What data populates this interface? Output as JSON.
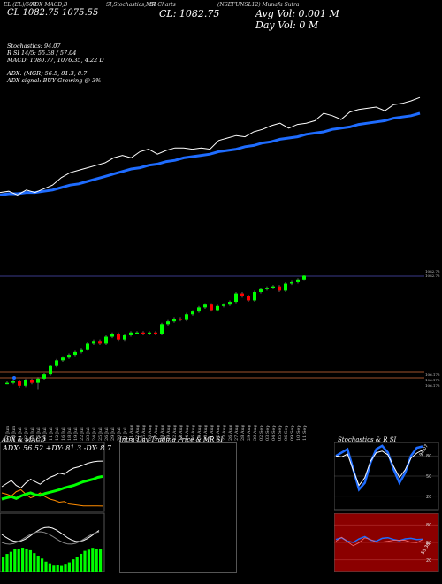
{
  "header": {
    "line1_a": "EL (EL)/500",
    "line1_b": "ADX MACD,B",
    "line1_c": "SI,Stochastics,MR",
    "line1_d": "SI Charts",
    "line1_e": "(NSEFUNSL12) Munafa Sutra",
    "close_label": "CL: 1082.75",
    "day_label": "CL 1082.75 1075.55",
    "avg_vol": "Avg Vol: 0.001 M",
    "day_vol": "Day Vol: 0   M"
  },
  "indicators": {
    "stochastics": "Stochastics: 94.07",
    "rsi": "R                    SI 14/5: 55.38 / 57.04",
    "macd": "MACD: 1080.77,  1076.35,  4.22  D",
    "adx": "ADX:                           (MGR) 56.5,  81.3,  8.7",
    "adx_signal": "ADX  signal:                       BUY Growing @ 3%"
  },
  "price_levels": {
    "top1": "1082.75",
    "top2": "1082.75",
    "bot1": "106.175",
    "bot2": "106.175",
    "bot3": "106.175"
  },
  "x_dates": [
    "27 Jun",
    "28 Jun",
    "01 Jul",
    "02 Jul",
    "04 Jul",
    "05 Jul",
    "09 Jul",
    "11 Jul",
    "12 Jul",
    "16 Jul",
    "18 Jul",
    "19 Jul",
    "22 Jul",
    "23 Jul",
    "24 Jul",
    "25 Jul",
    "26 Jul",
    "29 Jul",
    "30 Jul",
    "31 Jul",
    "01 Aug",
    "02 Aug",
    "05 Aug",
    "06 Aug",
    "07 Aug",
    "08 Aug",
    "09 Aug",
    "12 Aug",
    "13 Aug",
    "14 Aug",
    "16 Aug",
    "19 Aug",
    "20 Aug",
    "21 Aug",
    "22 Aug",
    "23 Aug",
    "26 Aug",
    "27 Aug",
    "28 Aug",
    "29 Aug",
    "30 Aug",
    "02 Sep",
    "03 Sep",
    "04 Sep",
    "05 Sep",
    "06 Sep",
    "09 Sep",
    "10 Sep",
    "11 Sep"
  ],
  "panels": {
    "adx_title": "ADX  & MACD",
    "adx_values": "ADX: 56.52  +DY: 81.3 -DY: 8.7",
    "intraday_title": "Intra  Day Trading Price  & MR                SI",
    "stoch_title": "Stochastics & R               SI",
    "stoch_ticks": [
      "80",
      "50",
      "20"
    ],
    "stoch_value": "94.07",
    "rsi_ticks": [
      "80",
      "50",
      "20"
    ],
    "rsi_value": "55.38"
  },
  "chart_data": {
    "type": "line",
    "title": "",
    "close": [
      1006,
      1007,
      1004,
      1008,
      1006,
      1009,
      1012,
      1018,
      1022,
      1024,
      1026,
      1028,
      1030,
      1034,
      1036,
      1034,
      1039,
      1041,
      1037,
      1040,
      1042,
      1042,
      1041,
      1042,
      1041,
      1048,
      1050,
      1052,
      1051,
      1055,
      1057,
      1060,
      1062,
      1058,
      1061,
      1062,
      1064,
      1070,
      1068,
      1065,
      1071,
      1073,
      1074,
      1075,
      1072,
      1077,
      1078,
      1080,
      1082.75
    ],
    "moving_average": [
      1004,
      1005,
      1005,
      1006,
      1006,
      1007,
      1008,
      1010,
      1012,
      1013,
      1015,
      1017,
      1019,
      1021,
      1023,
      1025,
      1026,
      1028,
      1029,
      1031,
      1032,
      1034,
      1035,
      1036,
      1037,
      1039,
      1040,
      1041,
      1043,
      1044,
      1046,
      1047,
      1049,
      1050,
      1051,
      1053,
      1054,
      1055,
      1057,
      1058,
      1059,
      1061,
      1062,
      1063,
      1064,
      1066,
      1067,
      1068,
      1070
    ],
    "candles": [
      {
        "o": 1006,
        "c": 1006,
        "h": 1007,
        "l": 1005
      },
      {
        "o": 1006,
        "c": 1007,
        "h": 1008,
        "l": 1005
      },
      {
        "o": 1007,
        "c": 1004,
        "h": 1008,
        "l": 1002
      },
      {
        "o": 1004,
        "c": 1008,
        "h": 1009,
        "l": 1003
      },
      {
        "o": 1008,
        "c": 1006,
        "h": 1009,
        "l": 1005
      },
      {
        "o": 1006,
        "c": 1009,
        "h": 1010,
        "l": 1001
      },
      {
        "o": 1009,
        "c": 1012,
        "h": 1013,
        "l": 1008
      },
      {
        "o": 1012,
        "c": 1018,
        "h": 1019,
        "l": 1011
      },
      {
        "o": 1018,
        "c": 1022,
        "h": 1023,
        "l": 1017
      },
      {
        "o": 1022,
        "c": 1024,
        "h": 1025,
        "l": 1021
      },
      {
        "o": 1024,
        "c": 1026,
        "h": 1027,
        "l": 1023
      },
      {
        "o": 1026,
        "c": 1028,
        "h": 1029,
        "l": 1025
      },
      {
        "o": 1028,
        "c": 1030,
        "h": 1031,
        "l": 1027
      },
      {
        "o": 1030,
        "c": 1034,
        "h": 1035,
        "l": 1029
      },
      {
        "o": 1034,
        "c": 1036,
        "h": 1037,
        "l": 1033
      },
      {
        "o": 1036,
        "c": 1034,
        "h": 1037,
        "l": 1033
      },
      {
        "o": 1034,
        "c": 1039,
        "h": 1040,
        "l": 1033
      },
      {
        "o": 1039,
        "c": 1041,
        "h": 1042,
        "l": 1038
      },
      {
        "o": 1041,
        "c": 1037,
        "h": 1042,
        "l": 1036
      },
      {
        "o": 1037,
        "c": 1040,
        "h": 1041,
        "l": 1036
      },
      {
        "o": 1040,
        "c": 1042,
        "h": 1043,
        "l": 1039
      },
      {
        "o": 1042,
        "c": 1042,
        "h": 1043,
        "l": 1041
      },
      {
        "o": 1042,
        "c": 1041,
        "h": 1043,
        "l": 1040
      },
      {
        "o": 1041,
        "c": 1042,
        "h": 1043,
        "l": 1040
      },
      {
        "o": 1042,
        "c": 1041,
        "h": 1043,
        "l": 1040
      },
      {
        "o": 1041,
        "c": 1048,
        "h": 1049,
        "l": 1040
      },
      {
        "o": 1048,
        "c": 1050,
        "h": 1051,
        "l": 1047
      },
      {
        "o": 1050,
        "c": 1052,
        "h": 1053,
        "l": 1049
      },
      {
        "o": 1052,
        "c": 1051,
        "h": 1053,
        "l": 1050
      },
      {
        "o": 1051,
        "c": 1055,
        "h": 1056,
        "l": 1050
      },
      {
        "o": 1055,
        "c": 1057,
        "h": 1058,
        "l": 1054
      },
      {
        "o": 1057,
        "c": 1060,
        "h": 1061,
        "l": 1056
      },
      {
        "o": 1060,
        "c": 1062,
        "h": 1063,
        "l": 1059
      },
      {
        "o": 1062,
        "c": 1058,
        "h": 1063,
        "l": 1057
      },
      {
        "o": 1058,
        "c": 1061,
        "h": 1062,
        "l": 1057
      },
      {
        "o": 1061,
        "c": 1062,
        "h": 1063,
        "l": 1060
      },
      {
        "o": 1062,
        "c": 1064,
        "h": 1065,
        "l": 1061
      },
      {
        "o": 1064,
        "c": 1070,
        "h": 1071,
        "l": 1063
      },
      {
        "o": 1070,
        "c": 1068,
        "h": 1071,
        "l": 1067
      },
      {
        "o": 1068,
        "c": 1065,
        "h": 1069,
        "l": 1064
      },
      {
        "o": 1065,
        "c": 1071,
        "h": 1072,
        "l": 1064
      },
      {
        "o": 1071,
        "c": 1073,
        "h": 1074,
        "l": 1070
      },
      {
        "o": 1073,
        "c": 1074,
        "h": 1075,
        "l": 1072
      },
      {
        "o": 1074,
        "c": 1075,
        "h": 1076,
        "l": 1073
      },
      {
        "o": 1075,
        "c": 1072,
        "h": 1076,
        "l": 1071
      },
      {
        "o": 1072,
        "c": 1077,
        "h": 1078,
        "l": 1071
      },
      {
        "o": 1077,
        "c": 1078,
        "h": 1079,
        "l": 1076
      },
      {
        "o": 1078,
        "c": 1080,
        "h": 1081,
        "l": 1077
      },
      {
        "o": 1080,
        "c": 1082.75,
        "h": 1083,
        "l": 1079
      }
    ],
    "adx_line": [
      20,
      22,
      24,
      21,
      25,
      28,
      30,
      27,
      26,
      29,
      31,
      33,
      35,
      38,
      40,
      42,
      45,
      48,
      50,
      52,
      55,
      56.52
    ],
    "plus_di": [
      40,
      45,
      50,
      42,
      38,
      46,
      52,
      48,
      44,
      50,
      55,
      58,
      62,
      60,
      66,
      70,
      72,
      75,
      78,
      80,
      81,
      81.3
    ],
    "minus_di": [
      30,
      28,
      25,
      32,
      35,
      28,
      22,
      25,
      30,
      24,
      20,
      18,
      15,
      16,
      12,
      11,
      10,
      9,
      9,
      9,
      8.8,
      8.7
    ],
    "stoch_series": [
      80,
      85,
      90,
      60,
      30,
      40,
      70,
      90,
      95,
      85,
      60,
      40,
      55,
      80,
      92,
      94.07
    ],
    "rsi_series": [
      55,
      58,
      52,
      50,
      56,
      60,
      54,
      52,
      57,
      58,
      55,
      53,
      56,
      57,
      55,
      55.38
    ],
    "accent_colors": {
      "up": "#00ff00",
      "down": "#ff0000",
      "ma": "#1e6cff",
      "line": "#ffffff"
    }
  }
}
